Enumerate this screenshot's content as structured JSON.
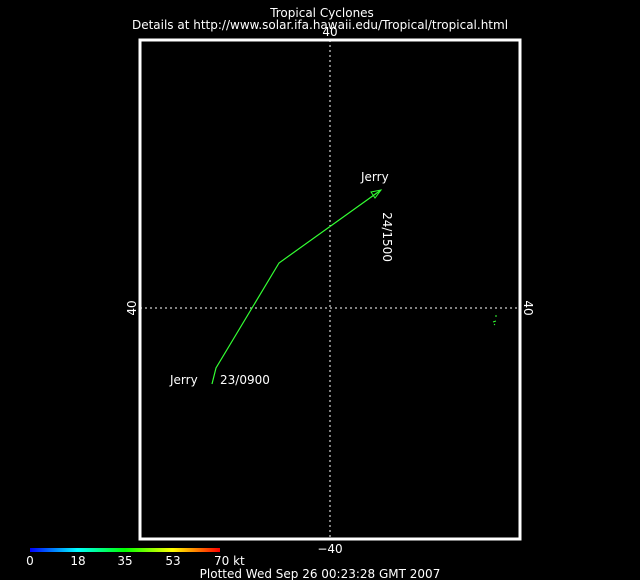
{
  "header": {
    "title": "Tropical Cyclones",
    "details": "Details at http://www.solar.ifa.hawaii.edu/Tropical/tropical.html"
  },
  "axes": {
    "top_label": "40",
    "bottom_label": "−40",
    "left_label": "40",
    "right_label": "40"
  },
  "storm": {
    "name_start": "Jerry",
    "name_end": "Jerry",
    "start_time": "23/0900",
    "end_time": "24/1500",
    "track_color": "#33ff33"
  },
  "legend": {
    "scale_labels": [
      "0",
      "18",
      "35",
      "53",
      "70 kt"
    ],
    "colors": [
      "#0000ff",
      "#00ffff",
      "#00ff00",
      "#ffff00",
      "#ff0000"
    ]
  },
  "footer": {
    "plotted": "Plotted Wed Sep 26 00:23:28 GMT 2007"
  }
}
